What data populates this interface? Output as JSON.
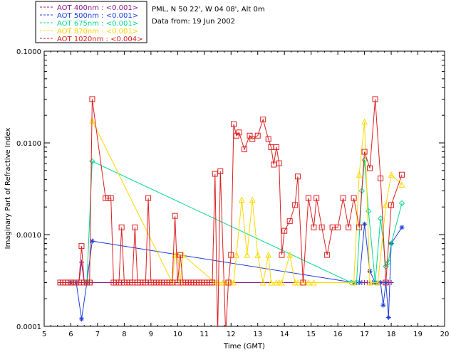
{
  "header": {
    "site": "PML, N 50 22', W 04 08', Alt 0m",
    "date": "Data from: 19 Jun 2002"
  },
  "chart_data": {
    "type": "line",
    "title": "",
    "xlabel": "Time (GMT)",
    "ylabel": "Imaginary Part of Refractive Index",
    "xlim": [
      5,
      20
    ],
    "ylim": [
      0.0001,
      0.1
    ],
    "yscale": "log",
    "xticks": [
      "5",
      "6",
      "7",
      "8",
      "9",
      "10",
      "11",
      "12",
      "13",
      "14",
      "15",
      "16",
      "17",
      "18",
      "19",
      "20"
    ],
    "yticks": [
      "0.0001",
      "0.0010",
      "0.0100",
      "0.1000"
    ],
    "legend_position": "top-left outside",
    "series": [
      {
        "name": "AOT  400nm : <0.001>",
        "color": "#8b1a8b",
        "marker": "plus",
        "x": [
          5.6,
          5.7,
          5.8,
          5.9,
          6.0,
          6.1,
          6.2,
          6.3,
          6.4,
          6.5,
          6.6,
          6.7,
          6.8,
          16.6,
          16.7,
          16.8,
          16.9,
          17.0,
          17.1,
          17.2,
          17.3,
          17.4,
          17.5,
          17.6,
          17.7,
          17.8,
          17.9,
          18.0
        ],
        "values": [
          0.0003,
          0.0003,
          0.0003,
          0.0003,
          0.0003,
          0.0003,
          0.0003,
          0.0003,
          0.0005,
          0.0003,
          0.0003,
          0.0003,
          0.0003,
          0.0003,
          0.0003,
          0.0003,
          0.0003,
          0.0003,
          0.0003,
          0.0003,
          0.0003,
          0.0003,
          0.0003,
          0.0003,
          0.0003,
          0.0003,
          0.0003,
          0.0003
        ]
      },
      {
        "name": "AOT  500nm : <0.001>",
        "color": "#1e3cdc",
        "marker": "asterisk",
        "x": [
          6.0,
          6.2,
          6.4,
          6.6,
          6.8,
          16.6,
          16.8,
          17.0,
          17.2,
          17.4,
          17.6,
          17.7,
          17.8,
          17.9,
          18.0,
          18.4
        ],
        "values": [
          0.0003,
          0.0003,
          0.00012,
          0.0003,
          0.00085,
          0.0003,
          0.0003,
          0.0013,
          0.0004,
          0.0003,
          0.0003,
          0.00017,
          0.0003,
          0.000125,
          0.0008,
          0.0012
        ]
      },
      {
        "name": "AOT  675nm : <0.001>",
        "color": "#00d890",
        "marker": "diamond",
        "x": [
          6.6,
          6.8,
          16.5,
          16.7,
          16.9,
          17.0,
          17.15,
          17.4,
          17.6,
          17.8,
          17.9,
          18.0,
          18.4
        ],
        "values": [
          0.0003,
          0.0063,
          0.0003,
          0.0003,
          0.003,
          0.0065,
          0.0018,
          0.0003,
          0.0015,
          0.00045,
          0.0005,
          0.0008,
          0.0022
        ]
      },
      {
        "name": "AOT  870nm : <0.001>",
        "color": "#ffd700",
        "marker": "triangle",
        "x": [
          6.8,
          9.8,
          9.9,
          10.0,
          10.1,
          10.2,
          11.4,
          11.5,
          11.7,
          11.8,
          12.0,
          12.1,
          12.2,
          12.4,
          12.6,
          12.8,
          13.0,
          13.2,
          13.4,
          13.5,
          13.7,
          13.8,
          13.9,
          14.2,
          14.4,
          14.5,
          14.7,
          14.9,
          15.1,
          16.6,
          16.8,
          17.0,
          17.2,
          17.5,
          17.8,
          18.0,
          18.4
        ],
        "values": [
          0.0175,
          0.0003,
          0.0006,
          0.0006,
          0.0003,
          0.0006,
          0.0003,
          0.0003,
          0.0003,
          0.0003,
          0.0003,
          0.0003,
          0.0006,
          0.0024,
          0.0006,
          0.0024,
          0.0006,
          0.0003,
          0.0006,
          0.0003,
          0.0003,
          0.0003,
          0.0003,
          0.0006,
          0.0003,
          0.0003,
          0.0003,
          0.0003,
          0.0003,
          0.0003,
          0.0045,
          0.017,
          0.0003,
          0.0003,
          0.0021,
          0.0045,
          0.0035
        ]
      },
      {
        "name": "AOT 1020nm : <0.004>",
        "color": "#dc1e1e",
        "marker": "square",
        "x": [
          5.6,
          5.7,
          5.8,
          5.9,
          6.0,
          6.1,
          6.2,
          6.3,
          6.4,
          6.5,
          6.6,
          6.7,
          6.8,
          7.3,
          7.4,
          7.5,
          7.6,
          7.7,
          7.8,
          7.9,
          8.0,
          8.1,
          8.2,
          8.3,
          8.4,
          8.5,
          8.6,
          8.7,
          8.8,
          8.9,
          9.0,
          9.1,
          9.2,
          9.3,
          9.4,
          9.5,
          9.6,
          9.7,
          9.8,
          9.9,
          10.0,
          10.1,
          10.2,
          10.3,
          10.4,
          10.5,
          10.6,
          10.7,
          10.8,
          10.9,
          11.0,
          11.1,
          11.2,
          11.3,
          11.4,
          11.5,
          11.6,
          11.8,
          11.9,
          12.0,
          12.1,
          12.2,
          12.3,
          12.5,
          12.7,
          12.8,
          13.0,
          13.2,
          13.4,
          13.5,
          13.6,
          13.7,
          13.8,
          13.9,
          14.0,
          14.2,
          14.4,
          14.5,
          14.7,
          14.9,
          15.1,
          15.2,
          15.4,
          15.6,
          15.8,
          16.0,
          16.2,
          16.4,
          16.6,
          16.8,
          17.0,
          17.2,
          17.4,
          17.6,
          17.8,
          18.0,
          18.4
        ],
        "values": [
          0.0003,
          0.0003,
          0.0003,
          0.0003,
          0.0003,
          0.0003,
          0.0003,
          0.0003,
          0.00075,
          0.0003,
          0.0003,
          0.0003,
          0.03,
          0.0025,
          0.0025,
          0.0025,
          0.0003,
          0.0003,
          0.0003,
          0.0012,
          0.0003,
          0.0003,
          0.0003,
          0.0003,
          0.0012,
          0.0003,
          0.0003,
          0.0003,
          0.0003,
          0.0025,
          0.0003,
          0.0003,
          0.0003,
          0.0003,
          0.0003,
          0.0003,
          0.0003,
          0.0003,
          0.0003,
          0.0016,
          0.0003,
          0.0006,
          0.0003,
          0.0003,
          0.0003,
          0.0003,
          0.0003,
          0.0003,
          0.0003,
          0.0003,
          0.0003,
          0.0003,
          0.0003,
          0.0003,
          0.0046,
          8e-05,
          0.0049,
          8e-05,
          0.0003,
          0.0006,
          0.016,
          0.012,
          0.013,
          0.0085,
          0.012,
          0.011,
          0.012,
          0.018,
          0.011,
          0.009,
          0.0058,
          0.009,
          0.006,
          0.0006,
          0.0011,
          0.0014,
          0.0021,
          0.0043,
          0.0003,
          0.0025,
          0.0012,
          0.0025,
          0.0012,
          0.0006,
          0.0012,
          0.0012,
          0.0025,
          0.0012,
          0.0025,
          0.0012,
          0.008,
          0.0053,
          0.03,
          0.0041,
          0.0003,
          0.0021,
          0.0045
        ]
      }
    ]
  }
}
